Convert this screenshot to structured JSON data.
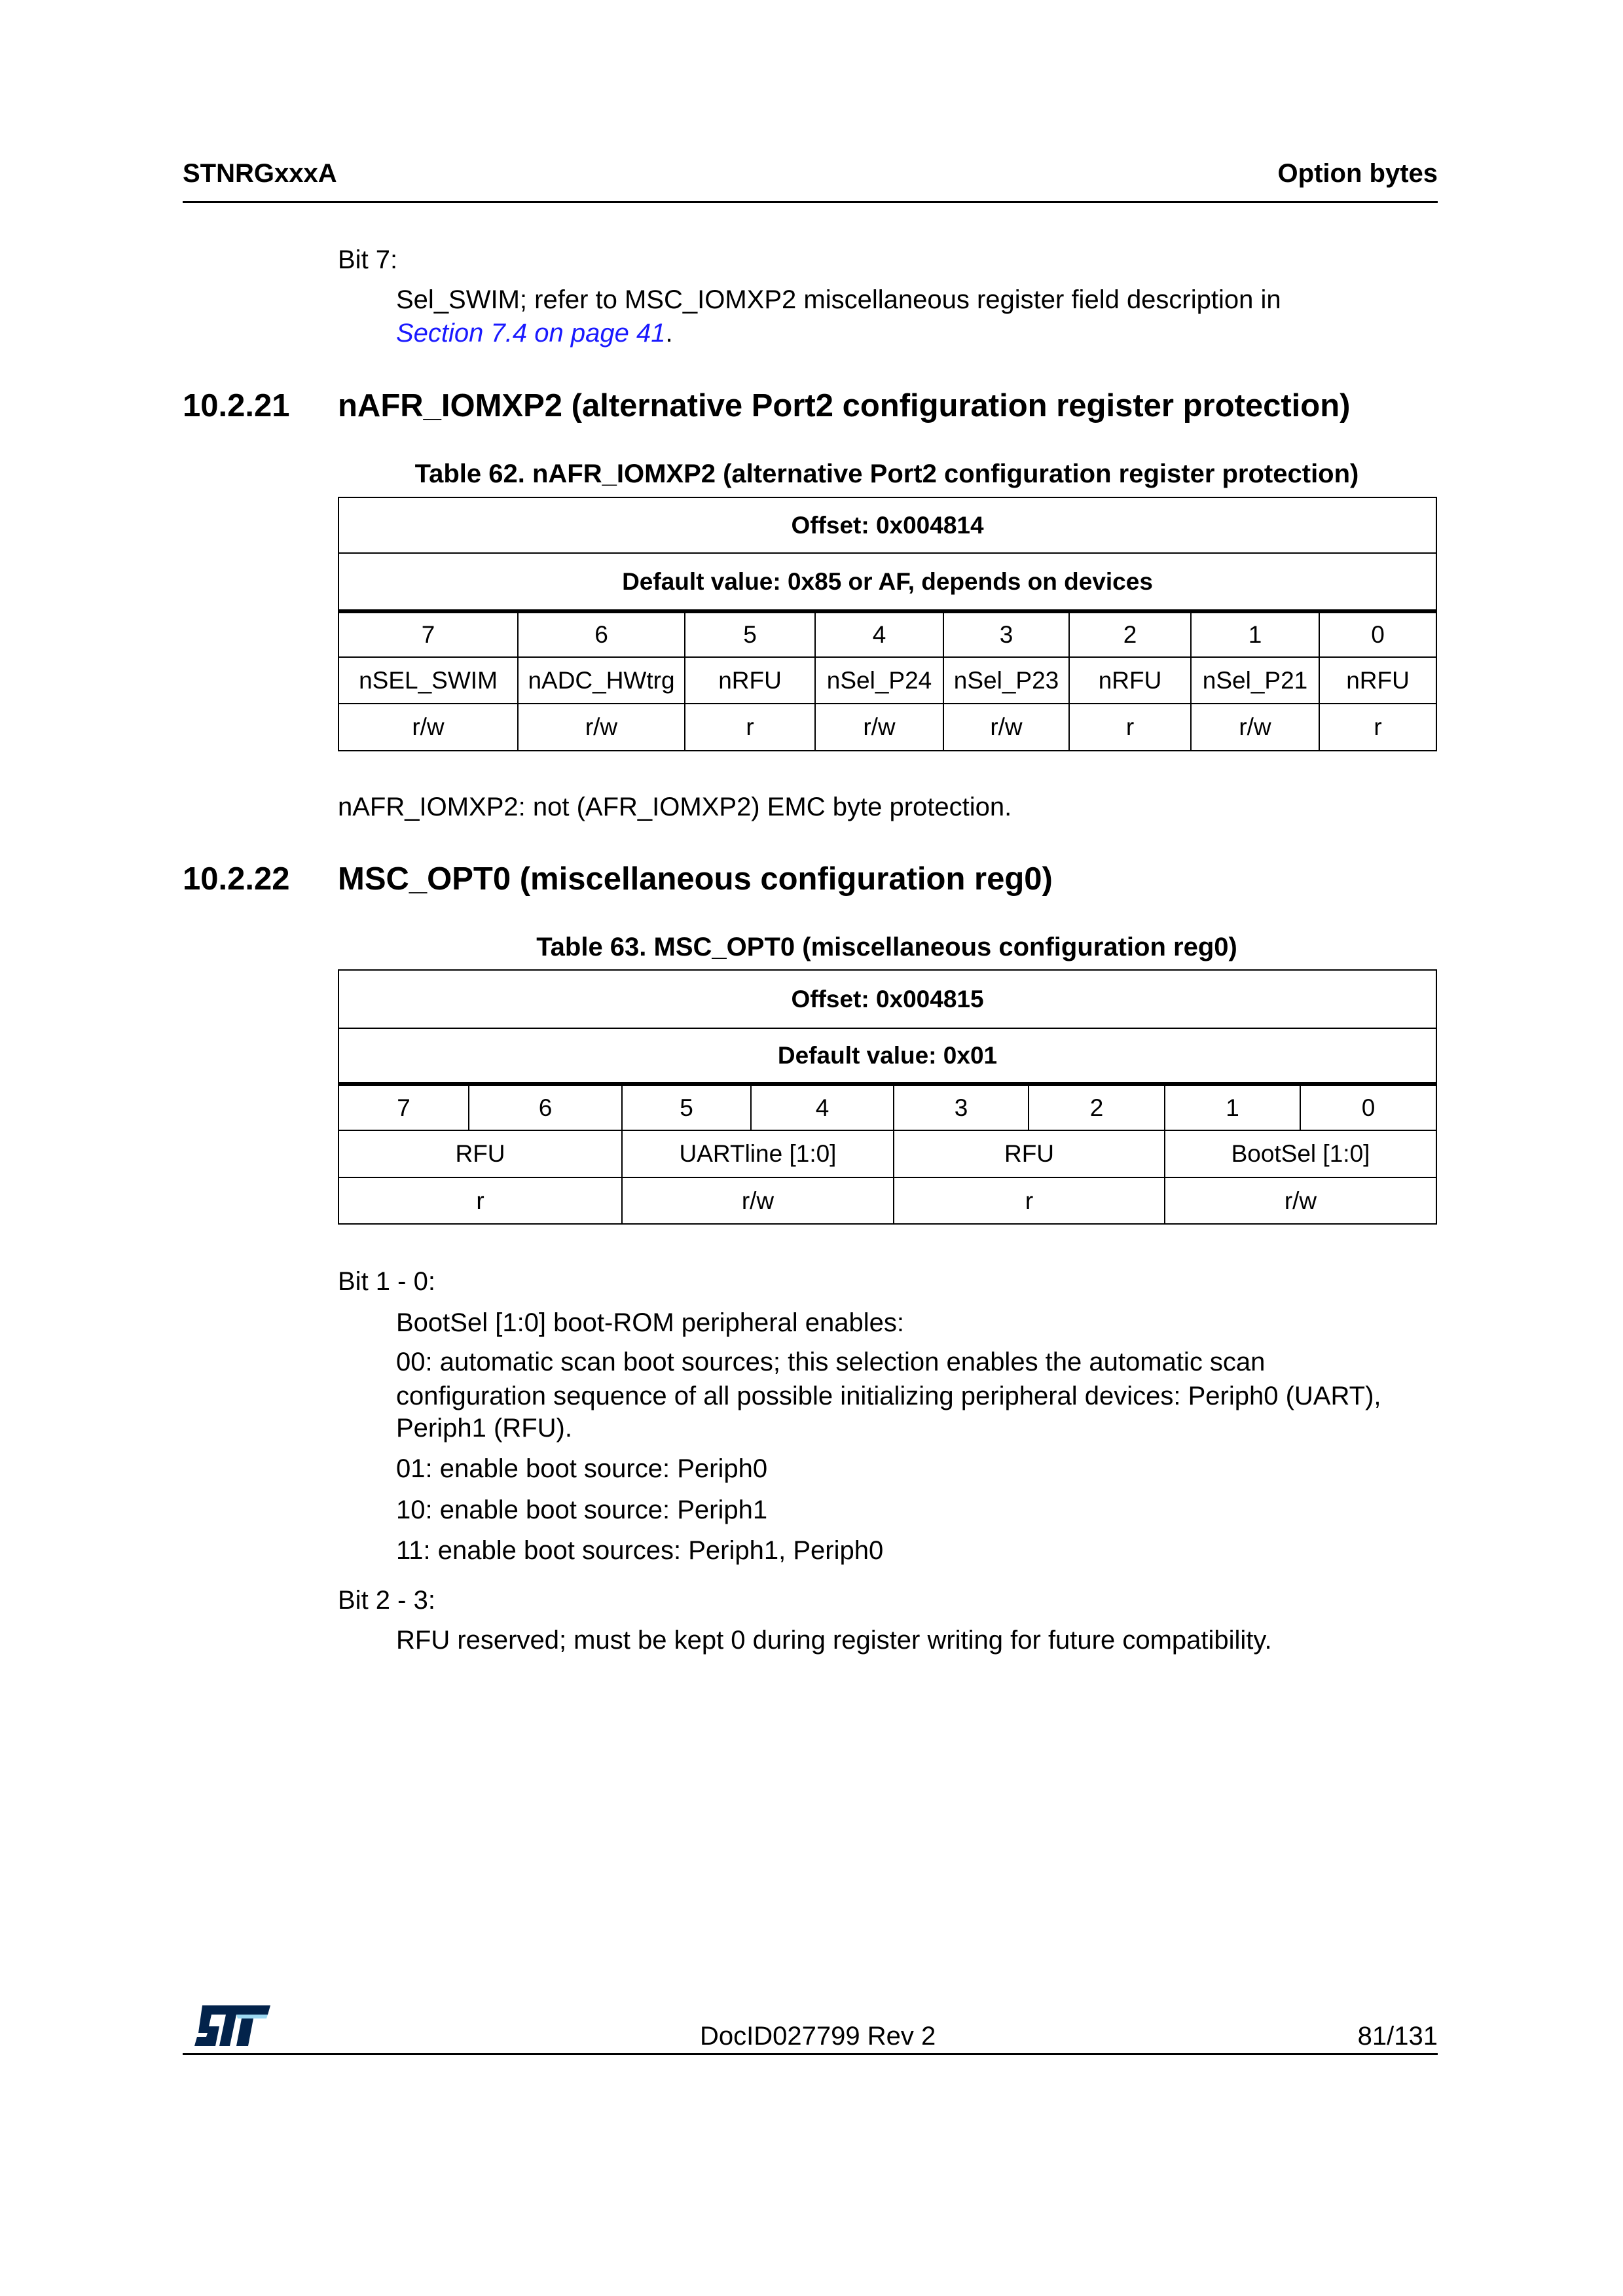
{
  "header": {
    "left": "STNRGxxxA",
    "right": "Option bytes"
  },
  "bit7": {
    "label": "Bit 7:",
    "text": "Sel_SWIM; refer to MSC_IOMXP2 miscellaneous register field description in",
    "link": "Section 7.4 on page 41",
    "after": "."
  },
  "section1": {
    "number": "10.2.21",
    "title": "nAFR_IOMXP2 (alternative Port2 configuration register protection)"
  },
  "table62": {
    "caption": "Table 62. nAFR_IOMXP2 (alternative Port2 configuration register protection)",
    "offset": "Offset: 0x004814",
    "default": "Default value: 0x85 or AF, depends on devices",
    "bits": [
      "7",
      "6",
      "5",
      "4",
      "3",
      "2",
      "1",
      "0"
    ],
    "names": [
      "nSEL_SWIM",
      "nADC_HWtrg",
      "nRFU",
      "nSel_P24",
      "nSel_P23",
      "nRFU",
      "nSel_P21",
      "nRFU"
    ],
    "access": [
      "r/w",
      "r/w",
      "r",
      "r/w",
      "r/w",
      "r",
      "r/w",
      "r"
    ]
  },
  "note1": "nAFR_IOMXP2: not (AFR_IOMXP2) EMC byte protection.",
  "section2": {
    "number": "10.2.22",
    "title": "MSC_OPT0 (miscellaneous configuration reg0)"
  },
  "table63": {
    "caption": "Table 63. MSC_OPT0 (miscellaneous configuration reg0)",
    "offset": "Offset: 0x004815",
    "default": "Default value: 0x01",
    "bits": [
      "7",
      "6",
      "5",
      "4",
      "3",
      "2",
      "1",
      "0"
    ],
    "names": [
      "RFU",
      "UARTline [1:0]",
      "RFU",
      "BootSel [1:0]"
    ],
    "access": [
      "r",
      "r/w",
      "r",
      "r/w"
    ]
  },
  "bit10": {
    "label": "Bit 1 - 0:",
    "lines": [
      "BootSel [1:0] boot-ROM peripheral enables:",
      "00: automatic scan boot sources; this selection enables the automatic scan",
      "configuration sequence of all possible initializing peripheral devices: Periph0 (UART),",
      "Periph1 (RFU).",
      "01: enable boot source: Periph0",
      "10: enable boot source: Periph1",
      "11: enable boot sources: Periph1, Periph0"
    ]
  },
  "bit23": {
    "label": "Bit 2 - 3:",
    "text": "RFU reserved; must be kept 0 during register writing for future compatibility."
  },
  "footer": {
    "logo": "ST",
    "docid": "DocID027799 Rev 2",
    "page": "81/131"
  },
  "colors": {
    "link": "#1a1aff",
    "logo": "#03234b",
    "logo_accent": "#3cb4e6"
  }
}
